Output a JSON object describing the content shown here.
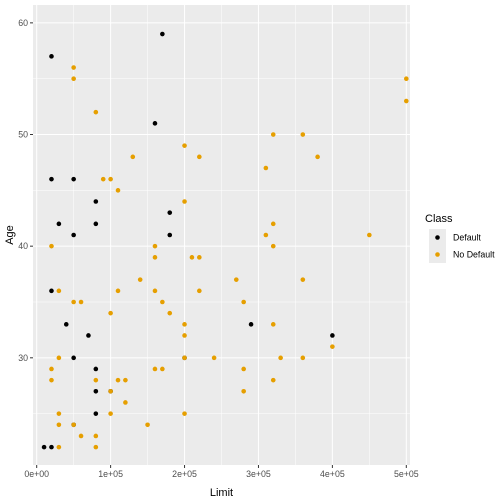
{
  "chart_data": {
    "type": "scatter",
    "xlabel": "Limit",
    "ylabel": "Age",
    "xlim": [
      -5000,
      505000
    ],
    "ylim": [
      20.4,
      61.6
    ],
    "x_ticks": [
      0,
      100000,
      200000,
      300000,
      400000,
      500000
    ],
    "x_tick_labels": [
      "0e+00",
      "1e+05",
      "2e+05",
      "3e+05",
      "4e+05",
      "5e+05"
    ],
    "y_ticks": [
      30,
      40,
      50,
      60
    ],
    "y_tick_labels": [
      "30",
      "40",
      "50",
      "60"
    ],
    "grid": true,
    "legend": {
      "title": "Class",
      "placement": "right"
    },
    "series": [
      {
        "name": "Default",
        "color": "#000000",
        "points": [
          [
            170000,
            59
          ],
          [
            20000,
            57
          ],
          [
            160000,
            51
          ],
          [
            20000,
            46
          ],
          [
            50000,
            46
          ],
          [
            80000,
            44
          ],
          [
            180000,
            43
          ],
          [
            30000,
            42
          ],
          [
            80000,
            42
          ],
          [
            50000,
            41
          ],
          [
            180000,
            41
          ],
          [
            20000,
            36
          ],
          [
            40000,
            33
          ],
          [
            290000,
            33
          ],
          [
            70000,
            32
          ],
          [
            400000,
            32
          ],
          [
            50000,
            30
          ],
          [
            200000,
            30
          ],
          [
            80000,
            29
          ],
          [
            80000,
            27
          ],
          [
            100000,
            27
          ],
          [
            80000,
            25
          ],
          [
            50000,
            24
          ],
          [
            10000,
            22
          ],
          [
            20000,
            22
          ]
        ]
      },
      {
        "name": "No Default",
        "color": "#E69F00",
        "points": [
          [
            50000,
            56
          ],
          [
            50000,
            55
          ],
          [
            500000,
            55
          ],
          [
            500000,
            53
          ],
          [
            80000,
            52
          ],
          [
            320000,
            50
          ],
          [
            360000,
            50
          ],
          [
            200000,
            49
          ],
          [
            130000,
            48
          ],
          [
            220000,
            48
          ],
          [
            380000,
            48
          ],
          [
            310000,
            47
          ],
          [
            90000,
            46
          ],
          [
            100000,
            46
          ],
          [
            110000,
            45
          ],
          [
            200000,
            44
          ],
          [
            320000,
            42
          ],
          [
            310000,
            41
          ],
          [
            450000,
            41
          ],
          [
            20000,
            40
          ],
          [
            160000,
            40
          ],
          [
            320000,
            40
          ],
          [
            160000,
            39
          ],
          [
            210000,
            39
          ],
          [
            220000,
            39
          ],
          [
            140000,
            37
          ],
          [
            270000,
            37
          ],
          [
            360000,
            37
          ],
          [
            30000,
            36
          ],
          [
            110000,
            36
          ],
          [
            160000,
            36
          ],
          [
            220000,
            36
          ],
          [
            50000,
            35
          ],
          [
            60000,
            35
          ],
          [
            170000,
            35
          ],
          [
            280000,
            35
          ],
          [
            100000,
            34
          ],
          [
            180000,
            34
          ],
          [
            200000,
            33
          ],
          [
            320000,
            33
          ],
          [
            200000,
            32
          ],
          [
            400000,
            31
          ],
          [
            30000,
            30
          ],
          [
            200000,
            30
          ],
          [
            240000,
            30
          ],
          [
            330000,
            30
          ],
          [
            360000,
            30
          ],
          [
            20000,
            29
          ],
          [
            160000,
            29
          ],
          [
            170000,
            29
          ],
          [
            280000,
            29
          ],
          [
            20000,
            28
          ],
          [
            80000,
            28
          ],
          [
            110000,
            28
          ],
          [
            120000,
            28
          ],
          [
            320000,
            28
          ],
          [
            100000,
            27
          ],
          [
            280000,
            27
          ],
          [
            120000,
            26
          ],
          [
            30000,
            25
          ],
          [
            100000,
            25
          ],
          [
            200000,
            25
          ],
          [
            30000,
            24
          ],
          [
            50000,
            24
          ],
          [
            150000,
            24
          ],
          [
            60000,
            23
          ],
          [
            80000,
            23
          ],
          [
            30000,
            22
          ],
          [
            80000,
            22
          ]
        ]
      }
    ]
  }
}
